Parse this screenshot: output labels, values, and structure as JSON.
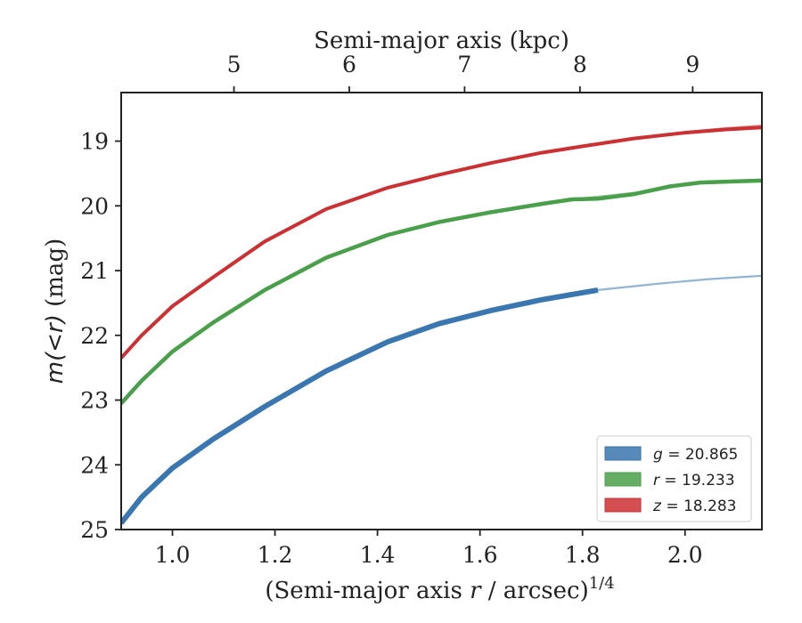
{
  "chart_data": {
    "type": "line",
    "xlabel_prefix": "(Semi-major axis ",
    "xlabel_var": "r",
    "xlabel_suffix": " / arcsec)",
    "xlabel_exp": "1/4",
    "ylabel_prefix": "m(<r)",
    "ylabel_suffix": " (mag)",
    "top_xlabel": "Semi-major axis (kpc)",
    "xlim": [
      0.9,
      2.15
    ],
    "ylim": [
      25.0,
      18.25
    ],
    "y_inverted": true,
    "xticks": [
      1.0,
      1.2,
      1.4,
      1.6,
      1.8,
      2.0
    ],
    "xtick_labels": [
      "1.0",
      "1.2",
      "1.4",
      "1.6",
      "1.8",
      "2.0"
    ],
    "yticks": [
      19,
      20,
      21,
      22,
      23,
      24,
      25
    ],
    "ytick_labels": [
      "19",
      "20",
      "21",
      "22",
      "23",
      "24",
      "25"
    ],
    "top_ticks_kpc": [
      5,
      6,
      7,
      8,
      9
    ],
    "top_tick_labels": [
      "5",
      "6",
      "7",
      "8",
      "9"
    ],
    "top_tick_positions": [
      1.12,
      1.345,
      1.57,
      1.795,
      2.015
    ],
    "legend_position": "lower-right",
    "series": [
      {
        "name": "g = 20.865",
        "legend_var": "g",
        "legend_value": "= 20.865",
        "color": "#3a76af",
        "x": [
          0.9,
          0.94,
          1.0,
          1.08,
          1.18,
          1.3,
          1.42,
          1.52,
          1.62,
          1.72,
          1.83
        ],
        "y": [
          24.9,
          24.5,
          24.05,
          23.6,
          23.1,
          22.55,
          22.1,
          21.82,
          21.62,
          21.45,
          21.3
        ],
        "extrap_x": [
          1.83,
          1.95,
          2.05,
          2.15
        ],
        "extrap_y": [
          21.3,
          21.2,
          21.13,
          21.08
        ]
      },
      {
        "name": "r = 19.233",
        "legend_var": "r",
        "legend_value": "= 19.233",
        "color": "#4a9f4a",
        "x": [
          0.9,
          0.94,
          1.0,
          1.08,
          1.18,
          1.3,
          1.42,
          1.52,
          1.62,
          1.72,
          1.78,
          1.83,
          1.9,
          1.97,
          2.03,
          2.1,
          2.15
        ],
        "y": [
          23.05,
          22.7,
          22.25,
          21.8,
          21.3,
          20.8,
          20.45,
          20.25,
          20.1,
          19.97,
          19.9,
          19.89,
          19.82,
          19.7,
          19.64,
          19.62,
          19.61
        ],
        "extrap_x": [
          1.78,
          1.85,
          1.92
        ],
        "extrap_y": [
          19.9,
          19.84,
          19.78
        ]
      },
      {
        "name": "z = 18.283",
        "legend_var": "z",
        "legend_value": "= 18.283",
        "color": "#cb3033",
        "x": [
          0.9,
          0.94,
          1.0,
          1.08,
          1.18,
          1.3,
          1.42,
          1.52,
          1.62,
          1.72,
          1.8,
          1.9,
          2.0,
          2.08,
          2.15
        ],
        "y": [
          22.35,
          22.0,
          21.55,
          21.1,
          20.55,
          20.05,
          19.72,
          19.52,
          19.34,
          19.18,
          19.08,
          18.96,
          18.87,
          18.82,
          18.79
        ],
        "extrap_x": [
          2.0,
          2.08,
          2.15
        ],
        "extrap_y": [
          18.86,
          18.8,
          18.76
        ]
      }
    ]
  }
}
